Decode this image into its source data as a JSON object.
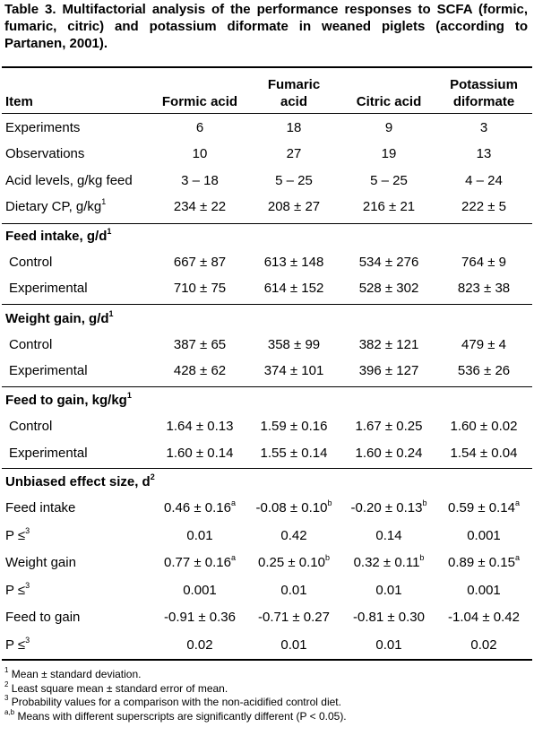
{
  "caption": "Table 3. Multifactorial analysis of the performance responses to SCFA (formic, fumaric, citric) and potassium diformate in weaned piglets (according to Partanen, 2001).",
  "header": {
    "item": "Item",
    "columns": [
      {
        "line1": "",
        "line2": "Formic acid"
      },
      {
        "line1": "Fumaric",
        "line2": "acid"
      },
      {
        "line1": "",
        "line2": "Citric acid"
      },
      {
        "line1": "Potassium",
        "line2": "diformate"
      }
    ]
  },
  "general_rows": [
    {
      "label": "Experiments",
      "label_sup": "",
      "values": [
        "6",
        "18",
        "9",
        "3"
      ],
      "sups": [
        "",
        "",
        "",
        ""
      ]
    },
    {
      "label": "Observations",
      "label_sup": "",
      "values": [
        "10",
        "27",
        "19",
        "13"
      ],
      "sups": [
        "",
        "",
        "",
        ""
      ]
    },
    {
      "label": "Acid levels, g/kg feed",
      "label_sup": "",
      "values": [
        "3 – 18",
        "5 – 25",
        "5 – 25",
        "4 – 24"
      ],
      "sups": [
        "",
        "",
        "",
        ""
      ]
    },
    {
      "label": "Dietary CP, g/kg",
      "label_sup": "1",
      "values": [
        "234 ± 22",
        "208 ± 27",
        "216 ± 21",
        "222 ± 5"
      ],
      "sups": [
        "",
        "",
        "",
        ""
      ]
    }
  ],
  "feed_intake": {
    "title": "Feed intake,  g/d",
    "title_sup": "1",
    "rows": [
      {
        "label": "Control",
        "label_sup": "",
        "values": [
          "667 ± 87",
          "613 ± 148",
          "534 ± 276",
          "764 ± 9"
        ],
        "sups": [
          "",
          "",
          "",
          ""
        ]
      },
      {
        "label": "Experimental",
        "label_sup": "",
        "values": [
          "710 ± 75",
          "614 ± 152",
          "528 ± 302",
          "823 ± 38"
        ],
        "sups": [
          "",
          "",
          "",
          ""
        ]
      }
    ]
  },
  "weight_gain": {
    "title": "Weight gain, g/d",
    "title_sup": "1",
    "rows": [
      {
        "label": "Control",
        "label_sup": "",
        "values": [
          "387 ± 65",
          "358 ± 99",
          "382 ± 121",
          "479 ± 4"
        ],
        "sups": [
          "",
          "",
          "",
          ""
        ]
      },
      {
        "label": "Experimental",
        "label_sup": "",
        "values": [
          "428 ± 62",
          "374 ± 101",
          "396 ± 127",
          "536 ± 26"
        ],
        "sups": [
          "",
          "",
          "",
          ""
        ]
      }
    ]
  },
  "feed_to_gain": {
    "title": "Feed to gain, kg/kg",
    "title_sup": "1",
    "rows": [
      {
        "label": "Control",
        "label_sup": "",
        "values": [
          "1.64 ± 0.13",
          "1.59 ± 0.16",
          "1.67 ± 0.25",
          "1.60 ± 0.02"
        ],
        "sups": [
          "",
          "",
          "",
          ""
        ]
      },
      {
        "label": "Experimental",
        "label_sup": "",
        "values": [
          "1.60 ± 0.14",
          "1.55 ± 0.14",
          "1.60 ± 0.24",
          "1.54 ± 0.04"
        ],
        "sups": [
          "",
          "",
          "",
          ""
        ]
      }
    ]
  },
  "effect_size": {
    "title": "Unbiased effect size, d",
    "title_sup": "2",
    "rows": [
      {
        "label": "Feed intake",
        "label_sup": "",
        "values": [
          "0.46 ± 0.16",
          "-0.08 ± 0.10",
          "-0.20 ± 0.13",
          "0.59 ± 0.14"
        ],
        "sups": [
          "a",
          "b",
          "b",
          "a"
        ]
      },
      {
        "label": "P ≤",
        "label_sup": "3",
        "values": [
          "0.01",
          "0.42",
          "0.14",
          "0.001"
        ],
        "sups": [
          "",
          "",
          "",
          ""
        ]
      },
      {
        "label": "Weight gain",
        "label_sup": "",
        "values": [
          "0.77 ± 0.16",
          "0.25 ± 0.10",
          "0.32 ± 0.11",
          "0.89 ± 0.15"
        ],
        "sups": [
          "a",
          "b",
          "b",
          "a"
        ]
      },
      {
        "label": "P ≤",
        "label_sup": "3",
        "values": [
          "0.001",
          "0.01",
          "0.01",
          "0.001"
        ],
        "sups": [
          "",
          "",
          "",
          ""
        ]
      },
      {
        "label": "Feed to gain",
        "label_sup": "",
        "values": [
          "-0.91 ± 0.36",
          "-0.71 ± 0.27",
          "-0.81 ± 0.30",
          "-1.04 ± 0.42"
        ],
        "sups": [
          "",
          "",
          "",
          ""
        ]
      },
      {
        "label": "P ≤",
        "label_sup": "3",
        "values": [
          "0.02",
          "0.01",
          "0.01",
          "0.02"
        ],
        "sups": [
          "",
          "",
          "",
          ""
        ]
      }
    ]
  },
  "footnotes": [
    {
      "mark": "1",
      "text": " Mean ± standard deviation."
    },
    {
      "mark": "2",
      "text": " Least square mean ± standard error of mean."
    },
    {
      "mark": "3",
      "text": " Probability values for a comparison with the non-acidified control diet."
    },
    {
      "mark": "a,b",
      "text": " Means with different superscripts are significantly different (P < 0.05)."
    }
  ]
}
